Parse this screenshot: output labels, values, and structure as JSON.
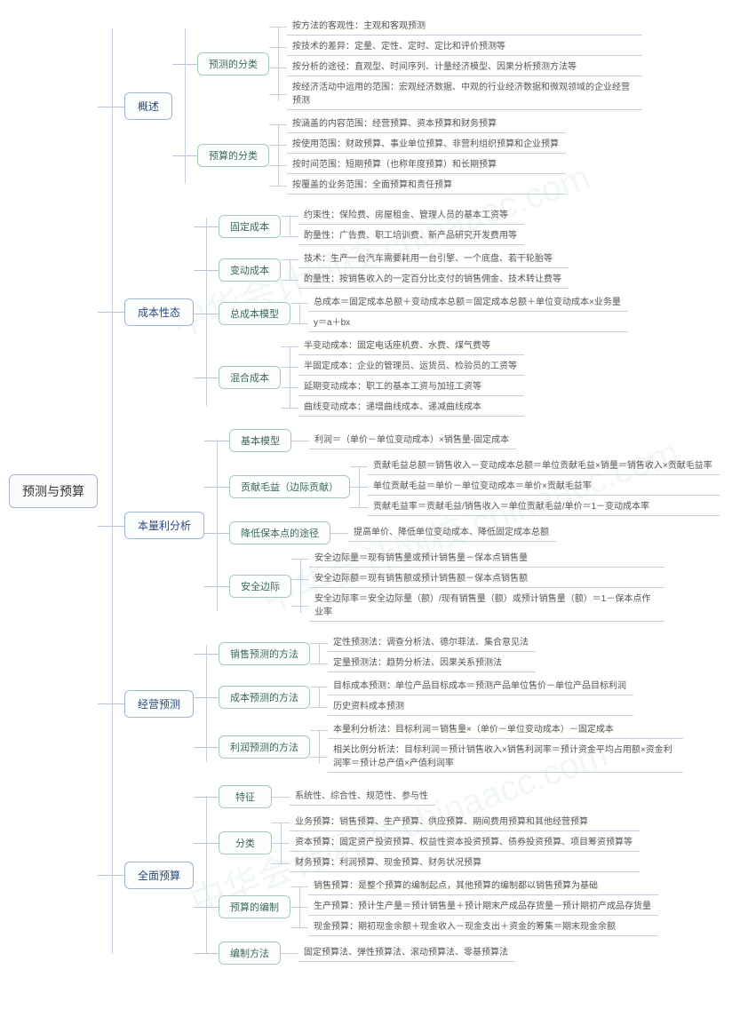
{
  "watermark_text": "中华会计网校 chinaacc.com",
  "colors": {
    "root_border": "#a8b5c9",
    "level1_border": "#9fb5d8",
    "level1_text": "#2a4a7a",
    "level2_border": "#a5cbb8",
    "level2_text": "#3a6a55",
    "leaf_border": "#c5d0de",
    "leaf_text": "#555555",
    "connector": "#b8c4d6",
    "background": "#ffffff"
  },
  "typography": {
    "root_fontsize": 14,
    "level1_fontsize": 12,
    "level2_fontsize": 11,
    "leaf_fontsize": 10,
    "font_family": "Microsoft YaHei"
  },
  "structure_type": "tree",
  "root": "预测与预算",
  "tree": [
    {
      "label": "概述",
      "children": [
        {
          "label": "预测的分类",
          "leaves": [
            "按方法的客观性：主观和客观预测",
            "按技术的差异：定量、定性、定时、定比和评价预测等",
            "按分析的途径：直观型、时间序列、计量经济模型、因果分析预测方法等",
            "按经济活动中运用的范围：宏观经济数据、中观的行业经济数据和微观领域的企业经营预测"
          ]
        },
        {
          "label": "预算的分类",
          "leaves": [
            "按涵盖的内容范围：经营预算、资本预算和财务预算",
            "按使用范围：财政预算、事业单位预算、非营利组织预算和企业预算",
            "按时间范围：短期预算（也称年度预算）和长期预算",
            "按覆盖的业务范围：全面预算和责任预算"
          ]
        }
      ]
    },
    {
      "label": "成本性态",
      "children": [
        {
          "label": "固定成本",
          "leaves": [
            "约束性：保险费、房屋租金、管理人员的基本工资等",
            "酌量性：广告费、职工培训费、新产品研究开发费用等"
          ]
        },
        {
          "label": "变动成本",
          "leaves": [
            "技术：生产一台汽车需要耗用一台引擎、一个底盘、若干轮胎等",
            "酌量性：按销售收入的一定百分比支付的销售佣金、技术转让费等"
          ]
        },
        {
          "label": "总成本模型",
          "leaves": [
            "总成本＝固定成本总额＋变动成本总额＝固定成本总额＋单位变动成本×业务量",
            "y＝a＋bx"
          ]
        },
        {
          "label": "混合成本",
          "leaves": [
            "半变动成本：固定电话座机费、水费、煤气费等",
            "半固定成本：企业的管理员、运货员、检验员的工资等",
            "延期变动成本：职工的基本工资与加班工资等",
            "曲线变动成本：递增曲线成本、递减曲线成本"
          ]
        }
      ]
    },
    {
      "label": "本量利分析",
      "children": [
        {
          "label": "基本模型",
          "leaves": [
            "利润＝（单价－单位变动成本）×销售量-固定成本"
          ]
        },
        {
          "label": "贡献毛益（边际贡献）",
          "leaves": [
            "贡献毛益总额＝销售收入－变动成本总额＝单位贡献毛益×销量＝销售收入×贡献毛益率",
            "单位贡献毛益＝单价－单位变动成本＝单价×贡献毛益率",
            "贡献毛益率＝贡献毛益/销售收入＝单位贡献毛益/单价＝1－变动成本率"
          ]
        },
        {
          "label": "降低保本点的途径",
          "leaves": [
            "提高单价、降低单位变动成本、降低固定成本总额"
          ]
        },
        {
          "label": "安全边际",
          "leaves": [
            "安全边际量＝现有销售量或预计销售量－保本点销售量",
            "安全边际额＝现有销售额或预计销售额－保本点销售额",
            "安全边际率＝安全边际量（额）/现有销售量（额）或预计销售量（额）＝1－保本点作业率"
          ]
        }
      ]
    },
    {
      "label": "经营预测",
      "children": [
        {
          "label": "销售预测的方法",
          "leaves": [
            "定性预测法：调查分析法、德尔菲法、集合意见法",
            "定量预测法：趋势分析法、因果关系预测法"
          ]
        },
        {
          "label": "成本预测的方法",
          "leaves": [
            "目标成本预测：单位产品目标成本＝预测产品单位售价－单位产品目标利润",
            "历史资料成本预测"
          ]
        },
        {
          "label": "利润预测的方法",
          "leaves": [
            "本量利分析法：目标利润＝销售量×（单价－单位变动成本）－固定成本",
            "相关比例分析法：目标利润＝预计销售收入×销售利润率＝预计资金平均占用额×资金利润率＝预计总产值×产值利润率"
          ]
        }
      ]
    },
    {
      "label": "全面预算",
      "children": [
        {
          "label": "特征",
          "leaves": [
            "系统性、综合性、规范性、参与性"
          ]
        },
        {
          "label": "分类",
          "leaves": [
            "业务预算：销售预算、生产预算、供应预算、期间费用预算和其他经营预算",
            "资本预算：固定资产投资预算、权益性资本投资预算、债券投资预算、项目筹资预算等",
            "财务预算：利润预算、现金预算、财务状况预算"
          ]
        },
        {
          "label": "预算的编制",
          "leaves": [
            "销售预算：是整个预算的编制起点，其他预算的编制都以销售预算为基础",
            "生产预算：预计生产量＝预计销售量＋预计期末产成品存货量－预计期初产成品存货量",
            "现金预算：期初现金余额＋现金收入－现金支出＋资金的筹集＝期末现金余额"
          ]
        },
        {
          "label": "编制方法",
          "leaves": [
            "固定预算法、弹性预算法、滚动预算法、零基预算法"
          ]
        }
      ]
    }
  ]
}
